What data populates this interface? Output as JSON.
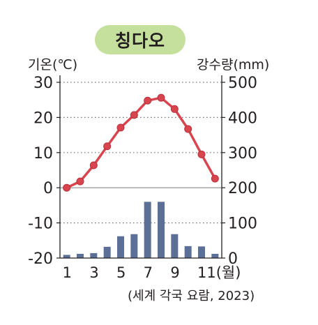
{
  "chart_data": {
    "type": "bar+line",
    "title": "칭다오",
    "months": [
      1,
      2,
      3,
      4,
      5,
      6,
      7,
      8,
      9,
      10,
      11,
      12
    ],
    "x_tick_labels": [
      "1",
      "3",
      "5",
      "7",
      "9",
      "11(월)"
    ],
    "x_tick_months": [
      1,
      3,
      5,
      7,
      9,
      11
    ],
    "temperature": {
      "unit_label": "기온(℃)",
      "values": [
        0,
        1.8,
        6.4,
        11.8,
        17.1,
        20.7,
        24.8,
        25.6,
        22.4,
        16.7,
        9.5,
        2.6
      ],
      "ylim": [
        -20,
        30
      ],
      "ticks": [
        30,
        20,
        10,
        0,
        -10,
        -20
      ],
      "color": "#d9454f"
    },
    "precipitation": {
      "unit_label": "강수량(mm)",
      "values": [
        9,
        12,
        14,
        32,
        62,
        68,
        160,
        160,
        68,
        34,
        33,
        12
      ],
      "ylim": [
        0,
        500
      ],
      "ticks": [
        500,
        400,
        300,
        200,
        100,
        0
      ],
      "color": "#5b6f97"
    },
    "grid": "dotted",
    "source": "(세계 각국 요람, 2023)"
  }
}
